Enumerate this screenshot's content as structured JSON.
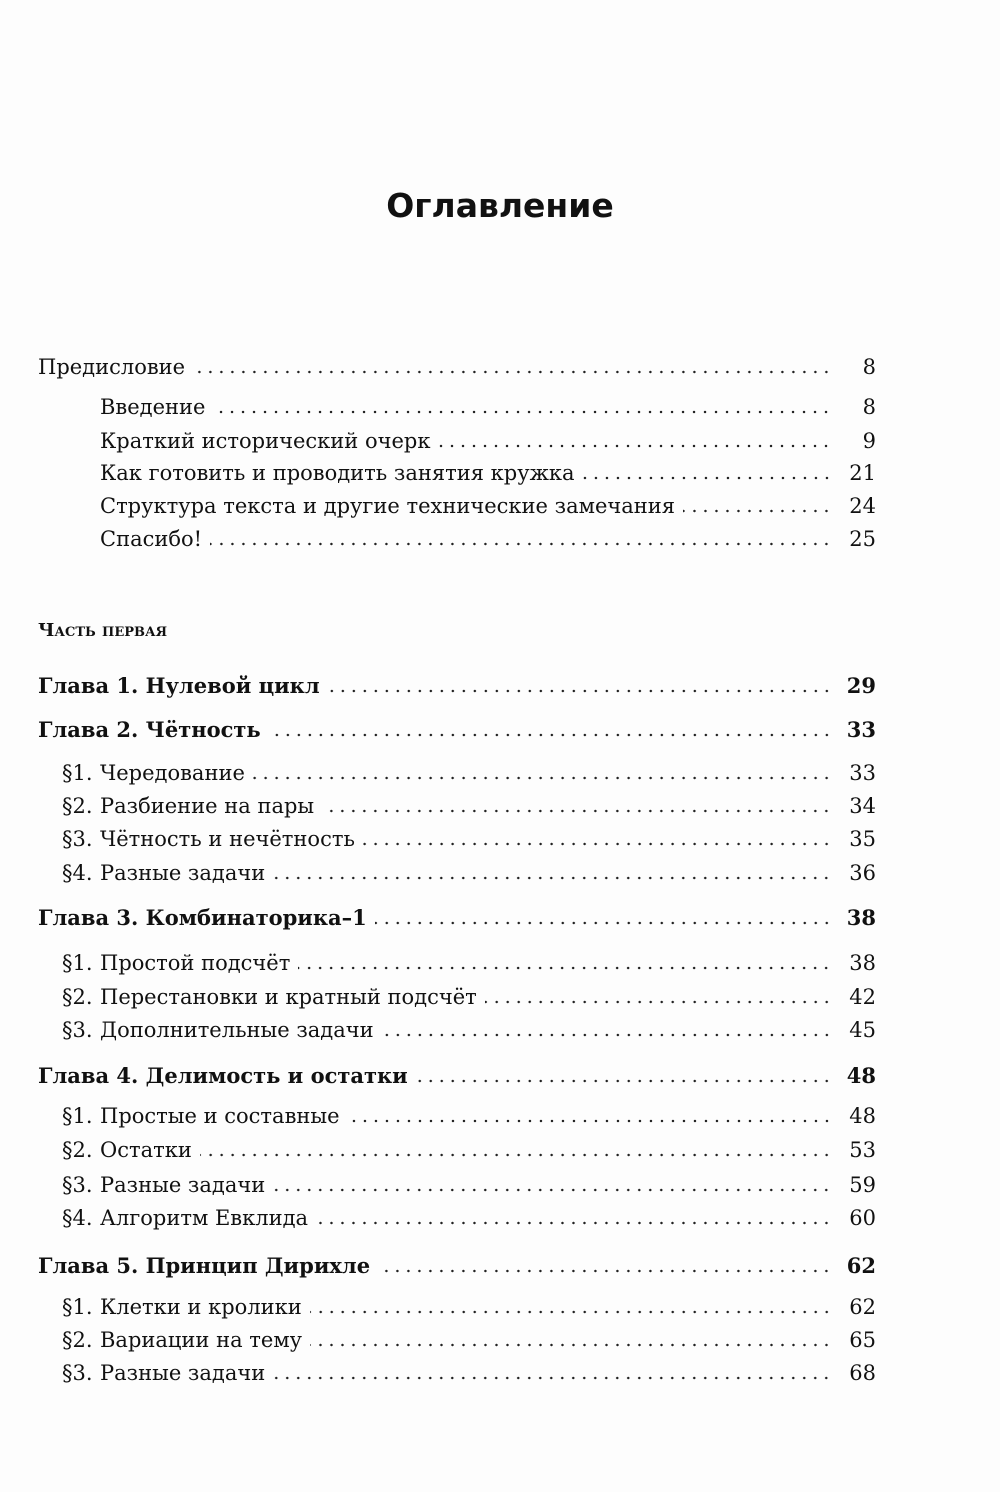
{
  "title": "Оглавление",
  "preface": {
    "label": "Предисловие",
    "page": "8",
    "items": [
      {
        "label": "Введение",
        "page": "8"
      },
      {
        "label": "Краткий исторический очерк",
        "page": "9"
      },
      {
        "label": "Как готовить и проводить занятия кружка",
        "page": "21"
      },
      {
        "label": "Структура текста и другие технические замечания",
        "page": "24"
      },
      {
        "label": "Спасибо!",
        "page": "25"
      }
    ]
  },
  "part": "Часть первая",
  "chapters": [
    {
      "label": "Глава 1. Нулевой цикл",
      "page": "29",
      "sections": []
    },
    {
      "label": "Глава 2. Чётность",
      "page": "33",
      "sections": [
        {
          "n": "§1.",
          "label": "Чередование",
          "page": "33"
        },
        {
          "n": "§2.",
          "label": "Разбиение на пары",
          "page": "34"
        },
        {
          "n": "§3.",
          "label": "Чётность и нечётность",
          "page": "35"
        },
        {
          "n": "§4.",
          "label": "Разные задачи",
          "page": "36"
        }
      ]
    },
    {
      "label": "Глава 3. Комбинаторика–1",
      "page": "38",
      "sections": [
        {
          "n": "§1.",
          "label": "Простой подсчёт",
          "page": "38"
        },
        {
          "n": "§2.",
          "label": "Перестановки и кратный подсчёт",
          "page": "42"
        },
        {
          "n": "§3.",
          "label": "Дополнительные задачи",
          "page": "45"
        }
      ]
    },
    {
      "label": "Глава 4. Делимость и остатки",
      "page": "48",
      "sections": [
        {
          "n": "§1.",
          "label": "Простые и составные",
          "page": "48"
        },
        {
          "n": "§2.",
          "label": "Остатки",
          "page": "53"
        },
        {
          "n": "§3.",
          "label": "Разные задачи",
          "page": "59"
        },
        {
          "n": "§4.",
          "label": "Алгоритм Евклида",
          "page": "60"
        }
      ]
    },
    {
      "label": "Глава 5. Принцип Дирихле",
      "page": "62",
      "sections": [
        {
          "n": "§1.",
          "label": "Клетки и кролики",
          "page": "62"
        },
        {
          "n": "§2.",
          "label": "Вариации на тему",
          "page": "65"
        },
        {
          "n": "§3.",
          "label": "Разные задачи",
          "page": "68"
        }
      ]
    }
  ]
}
